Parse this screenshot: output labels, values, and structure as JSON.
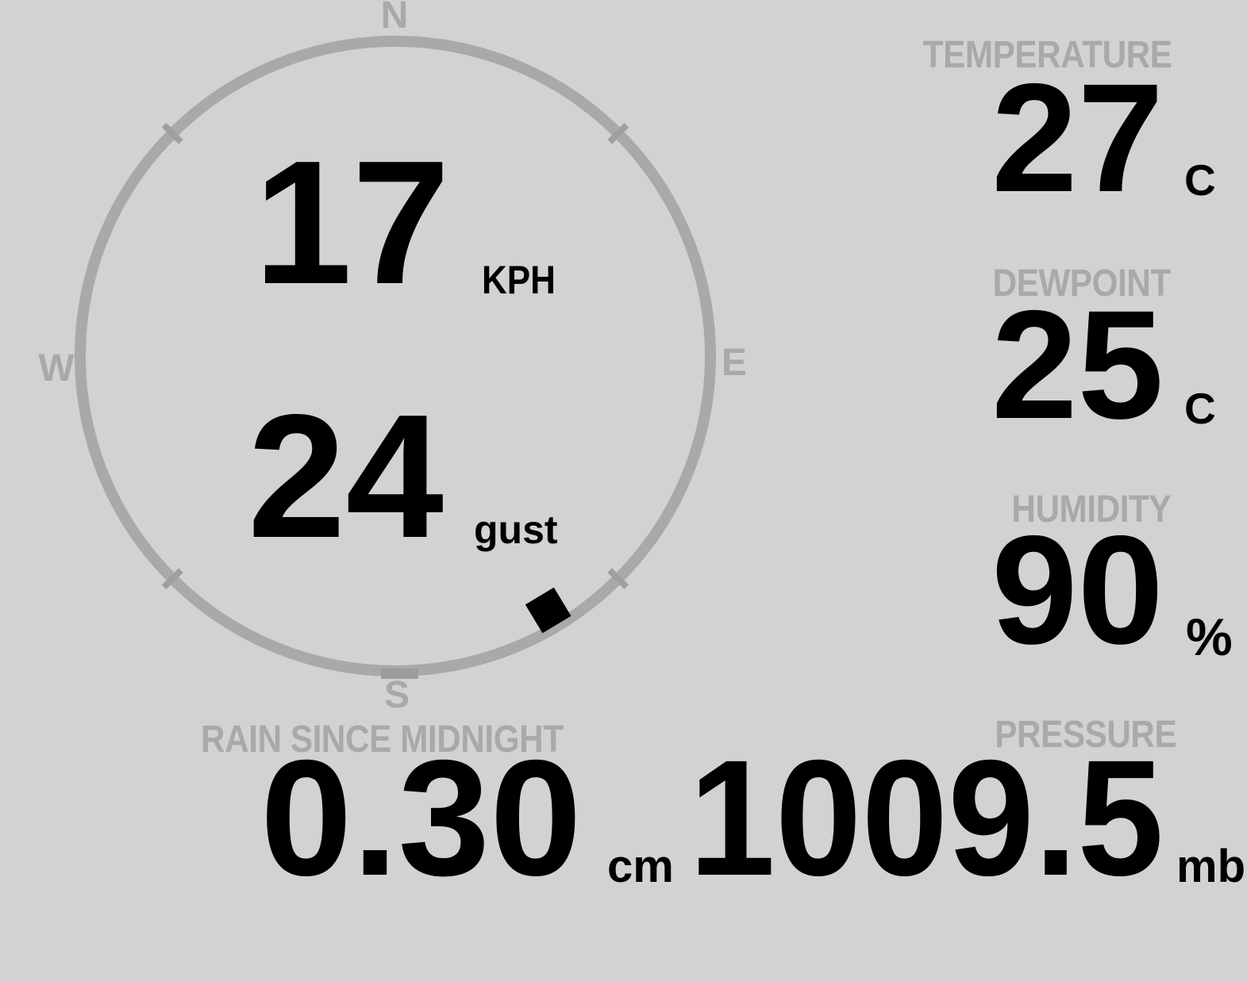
{
  "colors": {
    "background": "#d2d2d2",
    "muted_gray": "#a9a9a9",
    "tick_gray": "#9c9c9c",
    "value_black": "#000000"
  },
  "wind": {
    "speed_value": "17",
    "speed_unit": "KPH",
    "gust_value": "24",
    "gust_label": "gust",
    "direction_degrees": 149,
    "compass": {
      "north": "N",
      "south": "S",
      "east": "E",
      "west": "W"
    }
  },
  "metrics": {
    "temperature": {
      "label": "TEMPERATURE",
      "value": "27",
      "unit": "C"
    },
    "dewpoint": {
      "label": "DEWPOINT",
      "value": "25",
      "unit": "C"
    },
    "humidity": {
      "label": "HUMIDITY",
      "value": "90",
      "unit": "%"
    },
    "rain": {
      "label": "RAIN SINCE MIDNIGHT",
      "value": "0.30",
      "unit": "cm"
    },
    "pressure": {
      "label": "PRESSURE",
      "value": "1009.5",
      "unit": "mb"
    }
  }
}
